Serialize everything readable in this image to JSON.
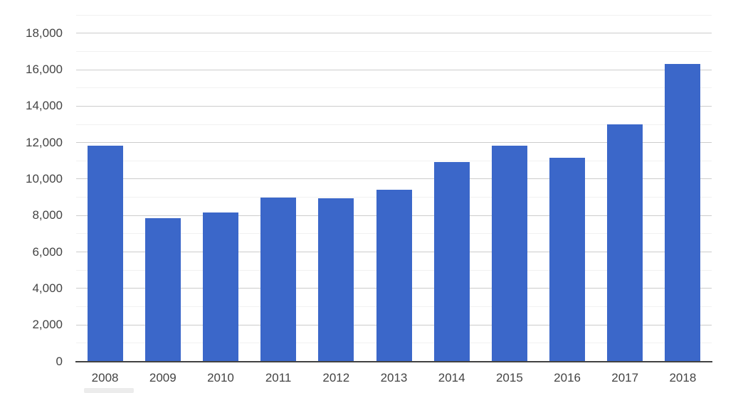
{
  "chart_data": {
    "type": "bar",
    "title": "",
    "xlabel": "",
    "ylabel": "",
    "categories": [
      "2008",
      "2009",
      "2010",
      "2011",
      "2012",
      "2013",
      "2014",
      "2015",
      "2016",
      "2017",
      "2018"
    ],
    "values": [
      11850,
      7850,
      8150,
      9000,
      8950,
      9400,
      10950,
      11850,
      11150,
      13000,
      16300
    ],
    "ylim": [
      0,
      19000
    ],
    "y_major_tick_values": [
      0,
      2000,
      4000,
      6000,
      8000,
      10000,
      12000,
      14000,
      16000,
      18000
    ],
    "y_major_tick_labels": [
      "0",
      "2,000",
      "4,000",
      "6,000",
      "8,000",
      "10,000",
      "12,000",
      "14,000",
      "16,000",
      "18,000"
    ],
    "minor_gridline_step": 1000,
    "grid": true,
    "legend_position": "none",
    "colors": {
      "bar": "#3b67c9",
      "major_gridline": "#cccccc",
      "minor_gridline": "#f1f1f1",
      "axis_line": "#424242",
      "tick_label": "#444444",
      "background": "#ffffff"
    }
  }
}
